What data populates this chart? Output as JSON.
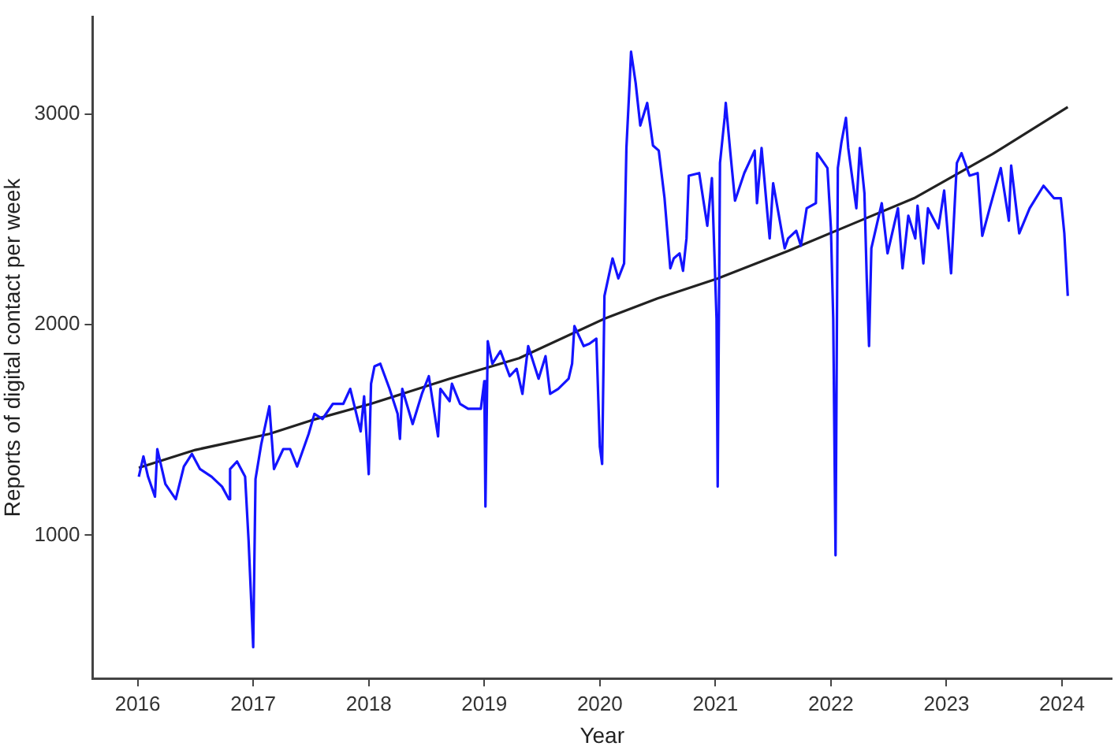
{
  "chart_data": {
    "type": "line",
    "xlabel": "Year",
    "ylabel": "Reports of digital contact per week",
    "xlim": [
      2015.61,
      2024.43
    ],
    "ylim": [
      320,
      3460
    ],
    "xticks": [
      2016,
      2017,
      2018,
      2019,
      2020,
      2021,
      2022,
      2023,
      2024
    ],
    "yticks": [
      1000,
      2000,
      3000
    ],
    "grid": false,
    "legend": false,
    "marker": "none",
    "line_style": "solid",
    "series": [
      {
        "color": "#1414ff",
        "x": [
          2016.01,
          2016.05,
          2016.09,
          2016.15,
          2016.17,
          2016.24,
          2016.33,
          2016.4,
          2016.47,
          2016.54,
          2016.64,
          2016.73,
          2016.79,
          2016.8,
          2016.86,
          2016.93,
          2016.96,
          2017.0,
          2017.02,
          2017.07,
          2017.14,
          2017.18,
          2017.26,
          2017.32,
          2017.38,
          2017.48,
          2017.53,
          2017.6,
          2017.69,
          2017.78,
          2017.84,
          2017.93,
          2017.96,
          2018.0,
          2018.02,
          2018.05,
          2018.1,
          2018.18,
          2018.25,
          2018.27,
          2018.29,
          2018.38,
          2018.46,
          2018.52,
          2018.6,
          2018.62,
          2018.7,
          2018.72,
          2018.79,
          2018.86,
          2018.93,
          2018.97,
          2019.0,
          2019.01,
          2019.03,
          2019.07,
          2019.14,
          2019.22,
          2019.28,
          2019.33,
          2019.38,
          2019.47,
          2019.53,
          2019.57,
          2019.64,
          2019.73,
          2019.76,
          2019.78,
          2019.86,
          2019.91,
          2019.97,
          2020.0,
          2020.02,
          2020.04,
          2020.11,
          2020.16,
          2020.21,
          2020.23,
          2020.26,
          2020.27,
          2020.31,
          2020.35,
          2020.41,
          2020.46,
          2020.51,
          2020.56,
          2020.61,
          2020.64,
          2020.69,
          2020.72,
          2020.75,
          2020.77,
          2020.86,
          2020.93,
          2020.97,
          2021.01,
          2021.02,
          2021.04,
          2021.08,
          2021.09,
          2021.13,
          2021.17,
          2021.25,
          2021.34,
          2021.36,
          2021.4,
          2021.45,
          2021.47,
          2021.5,
          2021.6,
          2021.63,
          2021.7,
          2021.74,
          2021.79,
          2021.87,
          2021.88,
          2021.97,
          2022.0,
          2022.02,
          2022.04,
          2022.06,
          2022.09,
          2022.13,
          2022.15,
          2022.22,
          2022.25,
          2022.29,
          2022.31,
          2022.33,
          2022.35,
          2022.44,
          2022.49,
          2022.58,
          2022.62,
          2022.67,
          2022.73,
          2022.75,
          2022.8,
          2022.84,
          2022.93,
          2022.98,
          2023.04,
          2023.09,
          2023.13,
          2023.2,
          2023.27,
          2023.31,
          2023.38,
          2023.47,
          2023.54,
          2023.56,
          2023.63,
          2023.72,
          2023.84,
          2023.93,
          2023.99,
          2024.02,
          2024.05
        ],
        "values": [
          1278,
          1374,
          1278,
          1183,
          1409,
          1243,
          1171,
          1326,
          1386,
          1314,
          1278,
          1231,
          1171,
          1314,
          1350,
          1278,
          976,
          469,
          1267,
          1433,
          1612,
          1314,
          1409,
          1409,
          1326,
          1481,
          1576,
          1552,
          1624,
          1624,
          1695,
          1493,
          1659,
          1290,
          1719,
          1802,
          1814,
          1695,
          1576,
          1457,
          1695,
          1528,
          1671,
          1755,
          1469,
          1695,
          1636,
          1719,
          1624,
          1600,
          1600,
          1600,
          1731,
          1136,
          1921,
          1814,
          1874,
          1755,
          1790,
          1671,
          1898,
          1743,
          1850,
          1671,
          1695,
          1743,
          1814,
          1993,
          1898,
          1909,
          1933,
          1421,
          1338,
          2136,
          2314,
          2219,
          2290,
          2838,
          3171,
          3295,
          3147,
          2945,
          3052,
          2850,
          2826,
          2600,
          2267,
          2314,
          2338,
          2255,
          2409,
          2707,
          2719,
          2469,
          2695,
          2028,
          1231,
          2767,
          2981,
          3052,
          2814,
          2588,
          2719,
          2826,
          2576,
          2838,
          2528,
          2409,
          2671,
          2362,
          2409,
          2445,
          2374,
          2552,
          2576,
          2814,
          2743,
          2457,
          2028,
          905,
          2743,
          2862,
          2981,
          2838,
          2552,
          2838,
          2624,
          2219,
          1898,
          2362,
          2576,
          2338,
          2552,
          2267,
          2517,
          2409,
          2564,
          2290,
          2552,
          2457,
          2636,
          2243,
          2767,
          2814,
          2707,
          2719,
          2421,
          2564,
          2743,
          2493,
          2755,
          2433,
          2552,
          2659,
          2600,
          2600,
          2433,
          2136
        ]
      },
      {
        "type": "line",
        "color": "#222222",
        "x": [
          2016.01,
          2016.5,
          2017.14,
          2017.5,
          2018.02,
          2018.7,
          2019.3,
          2020.04,
          2020.5,
          2021.02,
          2021.63,
          2022.2,
          2022.72,
          2023.4,
          2024.05
        ],
        "values": [
          1320,
          1405,
          1481,
          1545,
          1624,
          1743,
          1840,
          2028,
          2124,
          2219,
          2350,
          2481,
          2600,
          2810,
          3033
        ]
      }
    ]
  }
}
